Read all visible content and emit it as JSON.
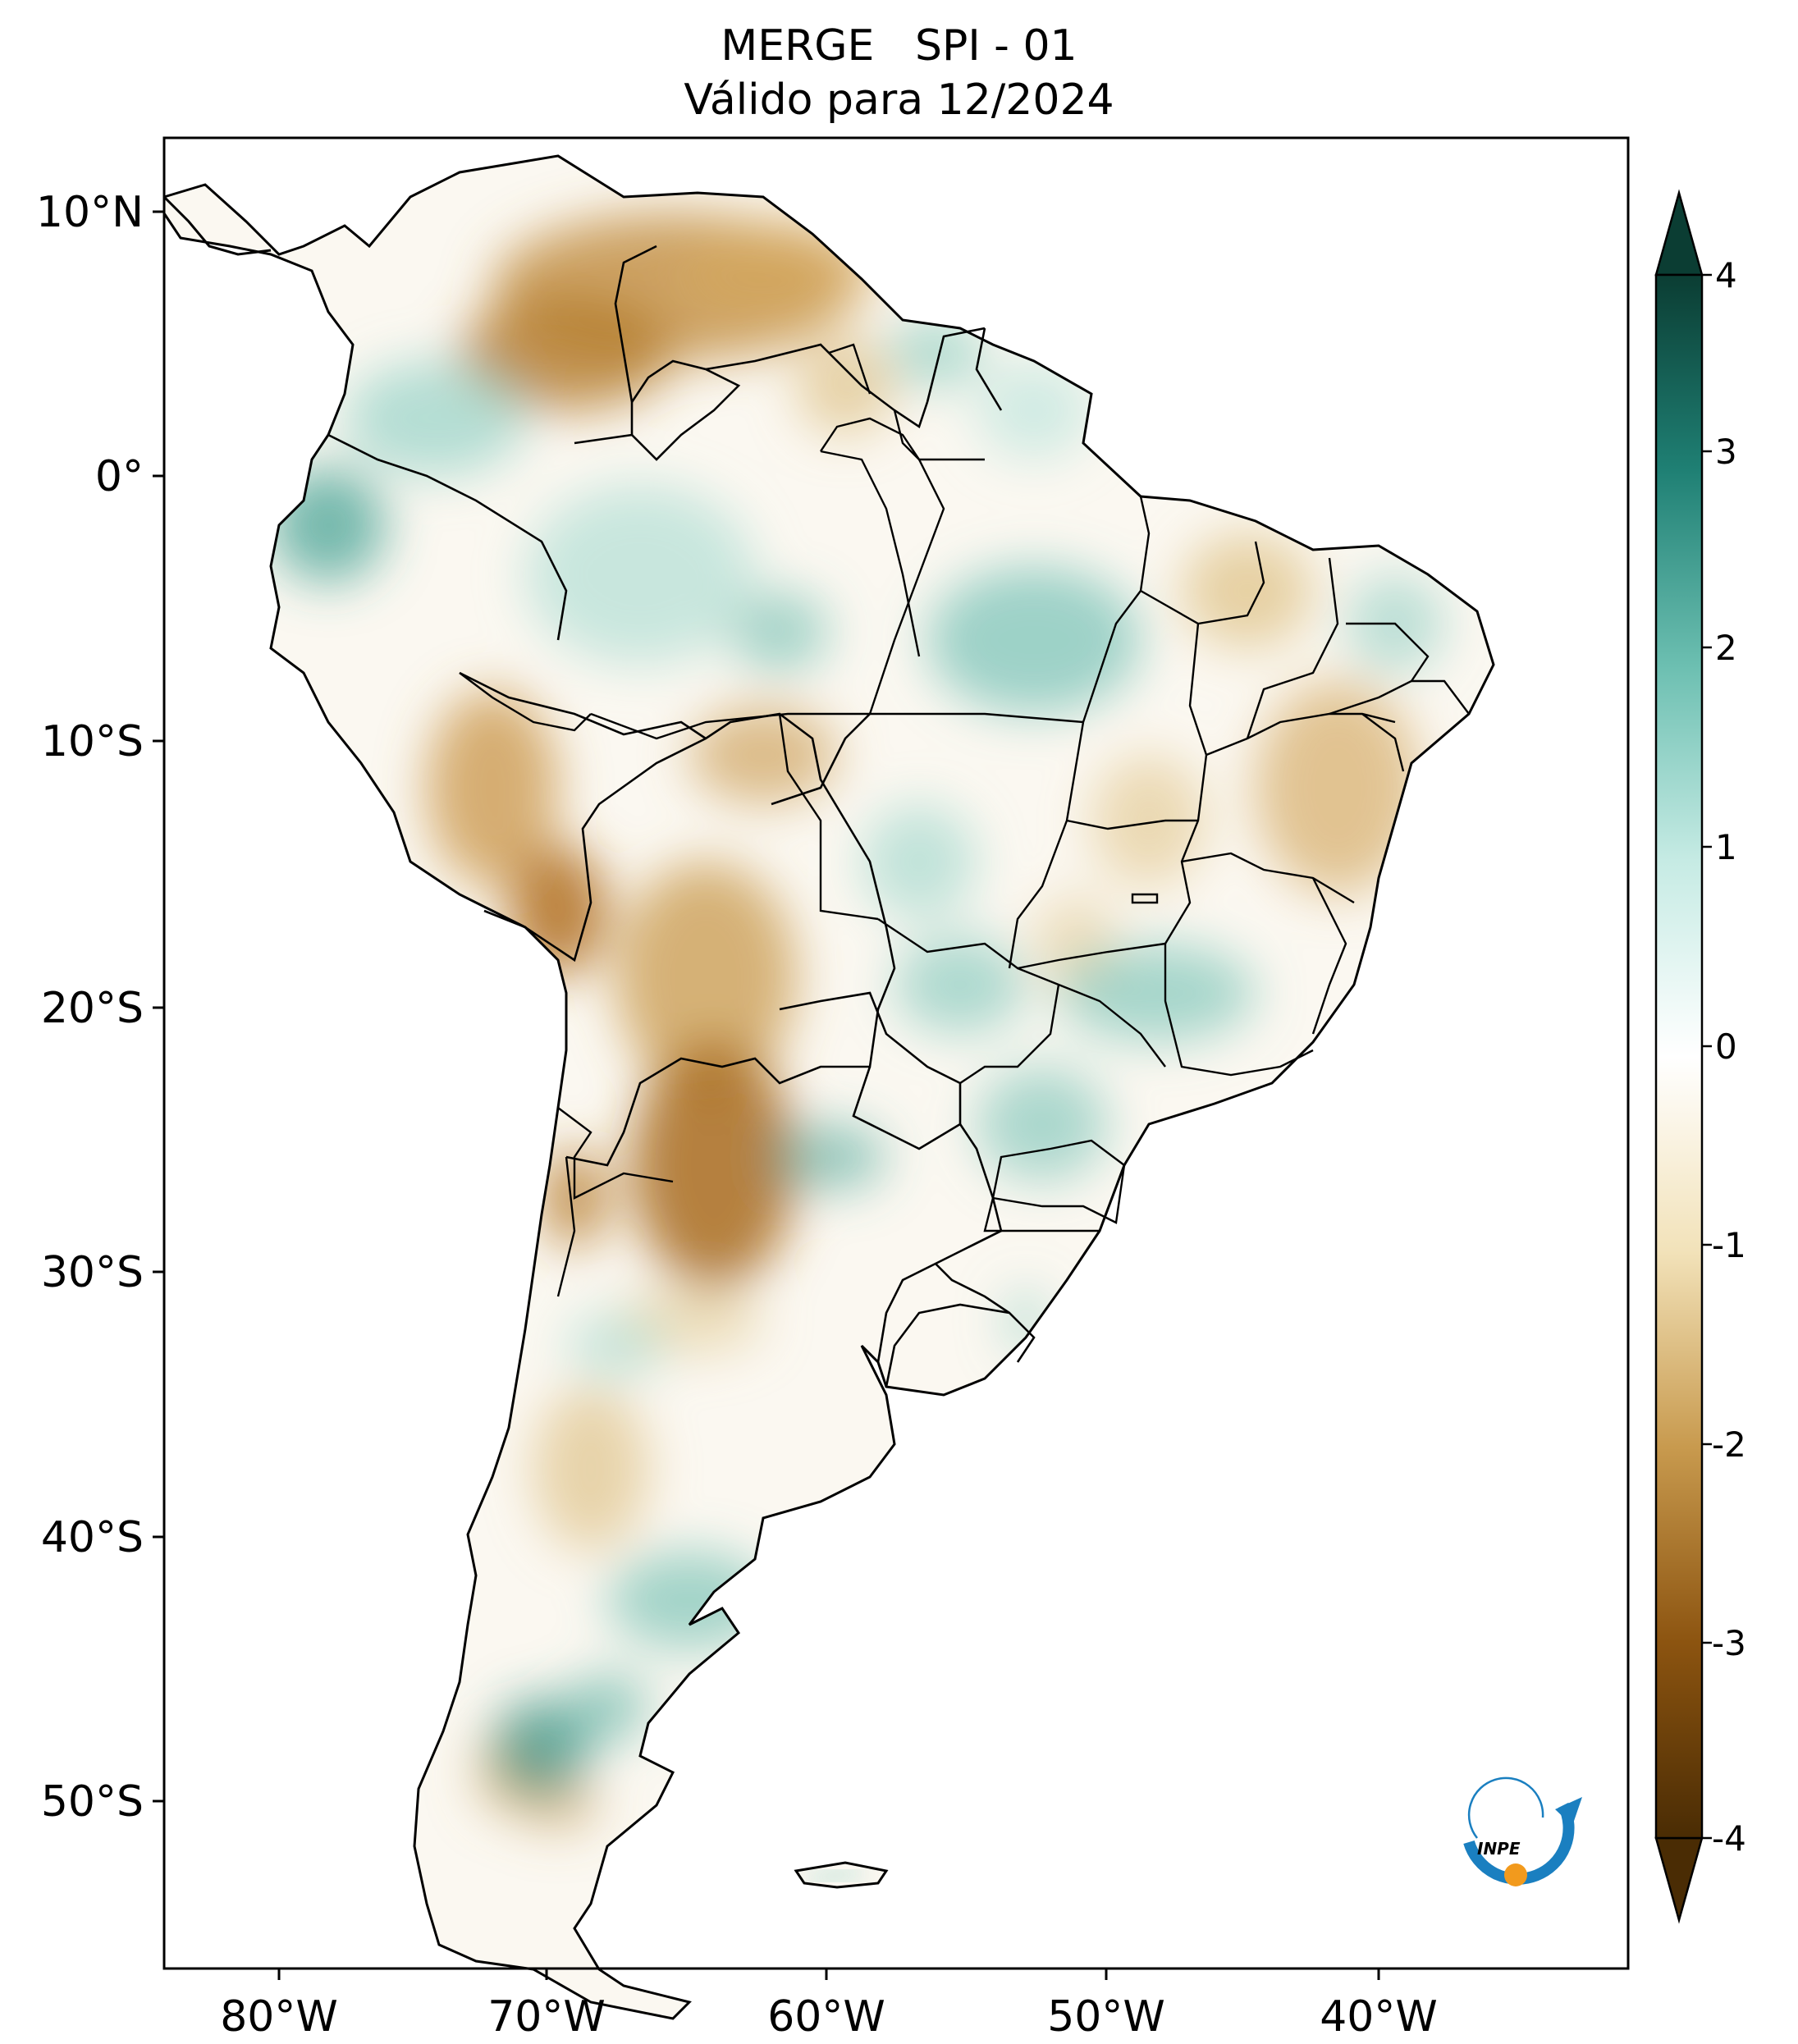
{
  "header": {
    "line1": "MERGE   SPI - 01",
    "line2": "Válido para 12/2024"
  },
  "axes": {
    "lon_ticks": [
      "80°W",
      "70°W",
      "60°W",
      "50°W",
      "40°W"
    ],
    "lat_ticks": [
      "10°N",
      "0°",
      "10°S",
      "20°S",
      "30°S",
      "40°S",
      "50°S"
    ]
  },
  "colorbar": {
    "ticks": [
      "4",
      "3",
      "2",
      "1",
      "0",
      "-1",
      "-2",
      "-3",
      "-4"
    ],
    "colors": {
      "dry_extreme": "#5a3505",
      "dry": "#c89a4e",
      "neutral": "#ffffff",
      "wet": "#7cc8bc",
      "wet_extreme": "#0b3d33"
    }
  },
  "logo": {
    "text": "INPE"
  },
  "legend_colors": {
    "border": "#000000"
  }
}
